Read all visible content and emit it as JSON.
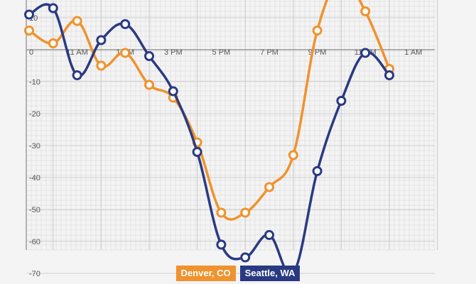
{
  "chart_data": {
    "type": "line",
    "x_categories": [
      "11 AM",
      "1 PM",
      "3 PM",
      "5 PM",
      "7 PM",
      "9 PM",
      "11 PM",
      "1 AM"
    ],
    "y_ticks": [
      10,
      0,
      -10,
      -20,
      -30,
      -40,
      -50,
      -60,
      -70
    ],
    "ylim": [
      -73,
      20
    ],
    "grid": true,
    "legend_position": "bottom-center",
    "series": [
      {
        "name": "Denver, CO",
        "color": "#f0922e",
        "hours": [
          9,
          10,
          11,
          12,
          13,
          14,
          15,
          16,
          17,
          18,
          19,
          20,
          21,
          22,
          23,
          24,
          25
        ],
        "values": [
          6,
          2,
          9,
          -5,
          -1,
          -11,
          -15,
          -29,
          -51,
          -51,
          -43,
          -33,
          6,
          22,
          12,
          -6,
          null
        ]
      },
      {
        "name": "Seattle, WA",
        "color": "#2a3a82",
        "hours": [
          9,
          10,
          11,
          12,
          13,
          14,
          15,
          16,
          17,
          18,
          19,
          20,
          21,
          22,
          23,
          24,
          25
        ],
        "values": [
          11,
          13,
          -8,
          3,
          8,
          -2,
          -13,
          -32,
          -61,
          -65,
          -58,
          -70,
          -38,
          -16,
          -1,
          -8,
          null
        ]
      }
    ]
  }
}
